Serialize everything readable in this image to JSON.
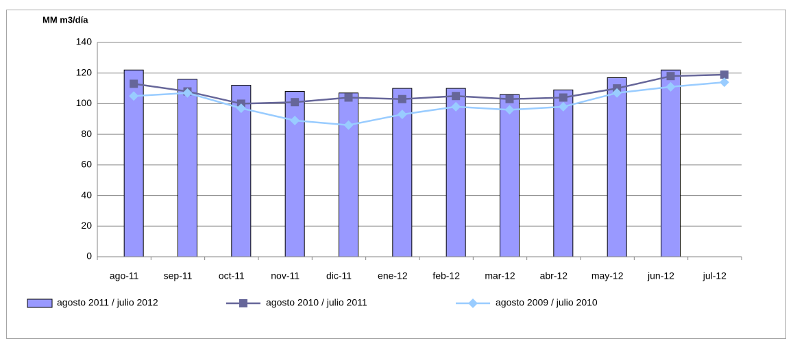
{
  "chart_data": {
    "type": "bar-line",
    "y_label": "MM m3/día",
    "categories": [
      "ago-11",
      "sep-11",
      "oct-11",
      "nov-11",
      "dic-11",
      "ene-12",
      "feb-12",
      "mar-12",
      "abr-12",
      "may-12",
      "jun-12",
      "jul-12"
    ],
    "series": [
      {
        "name": "agosto 2011 / julio 2012",
        "type": "bar",
        "color": "#9999ff",
        "values": [
          122,
          116,
          112,
          108,
          107,
          110,
          110,
          106,
          109,
          117,
          122,
          null
        ]
      },
      {
        "name": "agosto 2010 / julio 2011",
        "type": "line",
        "marker": "square",
        "color": "#666699",
        "values": [
          113,
          108,
          100,
          101,
          104,
          103,
          105,
          103,
          104,
          110,
          118,
          119
        ]
      },
      {
        "name": "agosto 2009 / julio 2010",
        "type": "line",
        "marker": "diamond",
        "color": "#99ccff",
        "values": [
          105,
          107,
          97,
          89,
          86,
          93,
          98,
          96,
          98,
          107,
          111,
          114
        ]
      }
    ],
    "ylim": [
      0,
      140
    ],
    "yticks": [
      0,
      20,
      40,
      60,
      80,
      100,
      120,
      140
    ],
    "grid": true,
    "legend": "bottom"
  }
}
